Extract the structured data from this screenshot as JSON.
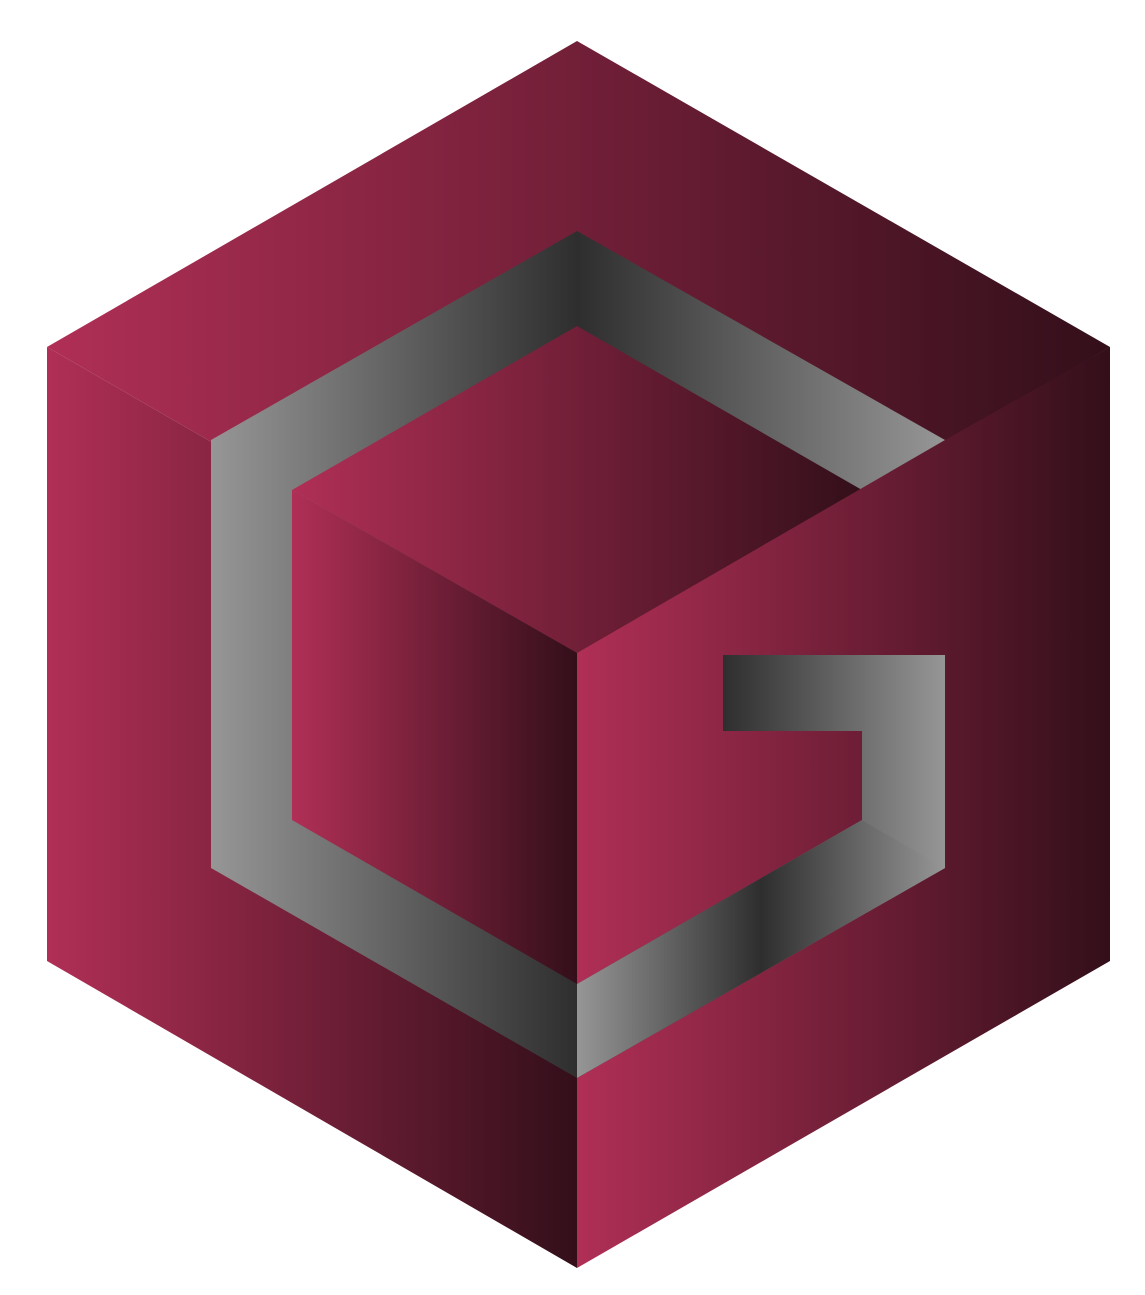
{
  "logo": {
    "description_icon": "cube-g-logo-icon",
    "colors": {
      "crimson_light": "#b02f56",
      "crimson_dark": "#330f1a",
      "band_light": "#969696",
      "band_dark": "#2e2e2e",
      "background": "#ffffff"
    }
  }
}
